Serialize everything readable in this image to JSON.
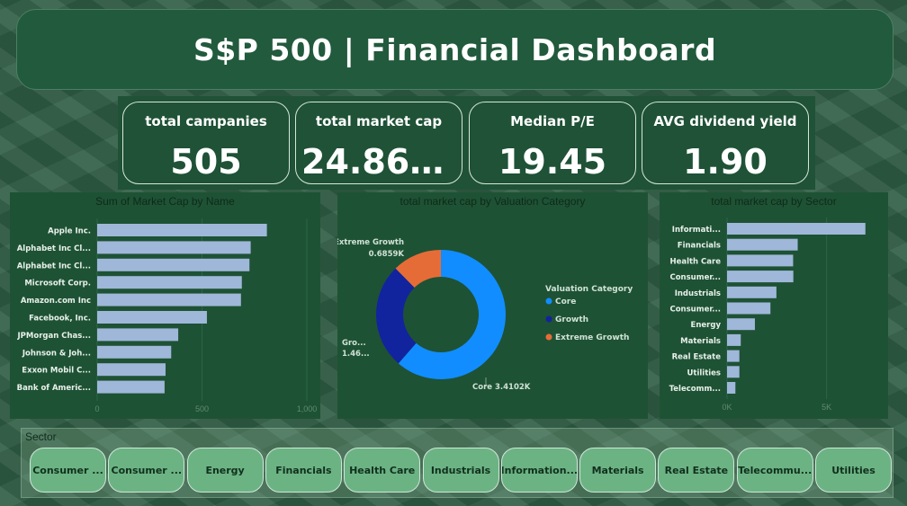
{
  "header": {
    "title": "S$P 500 | Financial Dashboard"
  },
  "kpis": [
    {
      "label": "total campanies",
      "value": "505"
    },
    {
      "label": "total market cap",
      "value": "24.865..."
    },
    {
      "label": "Median P/E",
      "value": "19.45"
    },
    {
      "label": "AVG dividend yield",
      "value": "1.90"
    }
  ],
  "chart_data": [
    {
      "type": "bar",
      "orientation": "horizontal",
      "title": "Sum of Market Cap by Name",
      "categories": [
        "Apple Inc.",
        "Alphabet Inc Cl...",
        "Alphabet Inc Cl...",
        "Microsoft Corp.",
        "Amazon.com Inc",
        "Facebook, Inc.",
        "JPMorgan Chas...",
        "Johnson & Joh...",
        "Exxon Mobil C...",
        "Bank of Americ..."
      ],
      "values": [
        809.5,
        732.2,
        726.4,
        690.0,
        685.9,
        523.4,
        386.6,
        353.1,
        326.1,
        321.5
      ],
      "xlim": [
        0,
        1000
      ],
      "ticks": [
        "0",
        "500",
        "1,000"
      ],
      "bar_color": "#9fb7d9"
    },
    {
      "type": "pie",
      "donut": true,
      "title": "total market cap by Valuation Category",
      "legend_title": "Valuation Category",
      "slices": [
        {
          "name": "Core",
          "value": 3410.2,
          "label": "Core 3.4102K",
          "color": "#118dff"
        },
        {
          "name": "Growth",
          "value": 1460,
          "label_lines": [
            "Gro...",
            "1.46..."
          ],
          "color": "#12239e"
        },
        {
          "name": "Extreme Growth",
          "value": 685.9,
          "label_lines": [
            "Extreme Growth",
            "0.6859K"
          ],
          "color": "#e66c37"
        }
      ]
    },
    {
      "type": "bar",
      "orientation": "horizontal",
      "title": "total market cap by Sector",
      "categories": [
        "Informati...",
        "Financials",
        "Health Care",
        "Consumer...",
        "Industrials",
        "Consumer...",
        "Energy",
        "Materials",
        "Real Estate",
        "Utilities",
        "Telecomm..."
      ],
      "values": [
        6950,
        3550,
        3320,
        3330,
        2480,
        2180,
        1400,
        690,
        620,
        620,
        420
      ],
      "xlim": [
        0,
        8000
      ],
      "ticks": [
        "0K",
        "5K"
      ],
      "bar_color": "#9fb7d9"
    }
  ],
  "slicer": {
    "label": "Sector",
    "items": [
      "Consumer ...",
      "Consumer ...",
      "Energy",
      "Financials",
      "Health Care",
      "Industrials",
      "Information...",
      "Materials",
      "Real Estate",
      "Telecommu...",
      "Utilities"
    ]
  }
}
